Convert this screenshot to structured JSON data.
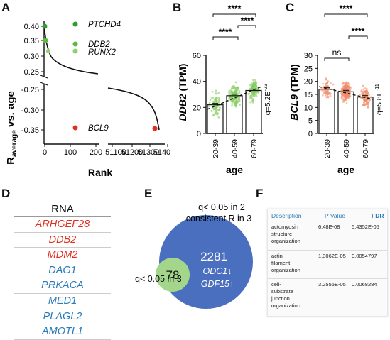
{
  "panels": {
    "a": "A",
    "b": "B",
    "c": "C",
    "d": "D",
    "e": "E",
    "f": "F"
  },
  "colors": {
    "green_dark": "#2e9e2e",
    "green_light": "#8fd16b",
    "red": "#e03020",
    "blue_text": "#2a7bb8",
    "venn_blue": "#4a6fbf",
    "venn_green": "#a3d68a",
    "orange": "#f09070"
  },
  "chart_data": [
    {
      "type": "scatter",
      "panel": "A",
      "ylabel_main": "R",
      "ylabel_sub": "average",
      "ylabel_rest": " vs. age",
      "xlabel": "Rank",
      "upper_yticks": [
        "0.40",
        "0.35",
        "0.30",
        "0.25"
      ],
      "lower_yticks": [
        "-0.25",
        "-0.30",
        "-0.35"
      ],
      "left_xticks": [
        "0",
        "100",
        "200"
      ],
      "right_xticks": [
        "51100",
        "51200",
        "51300",
        "51400"
      ],
      "highlighted": [
        {
          "label": "PTCHD4",
          "rank": 1,
          "r": 0.4,
          "color": "#2e9e2e"
        },
        {
          "label": "DDB2",
          "rank": 2,
          "r": 0.345,
          "color": "#5cbb3c"
        },
        {
          "label": "RUNX2",
          "rank": 8,
          "r": 0.33,
          "color": "#8fd16b"
        },
        {
          "label": "BCL9",
          "rank": 51390,
          "r": -0.345,
          "color": "#e03020"
        }
      ]
    },
    {
      "type": "bar",
      "panel": "B",
      "gene": "DDB2",
      "ylabel_unit": " (TPM)",
      "xlabel": "age",
      "categories": [
        "20-39",
        "40-59",
        "60-79"
      ],
      "values": [
        22,
        29,
        33
      ],
      "ylim": [
        0,
        60
      ],
      "yticks": [
        "0",
        "20",
        "40",
        "60"
      ],
      "stars": "****",
      "q_prefix": "q=5.2E",
      "q_exp": "-23"
    },
    {
      "type": "bar",
      "panel": "C",
      "gene": "BCL9",
      "ylabel_unit": " (TPM)",
      "xlabel": "age",
      "categories": [
        "20-39",
        "40-59",
        "60-79"
      ],
      "values": [
        17,
        16,
        14
      ],
      "ylim": [
        0,
        30
      ],
      "yticks": [
        "0",
        "5",
        "10",
        "15",
        "20",
        "25",
        "30"
      ],
      "ns": "ns",
      "stars": "****",
      "q_prefix": "q=5.8E",
      "q_exp": "-11"
    }
  ],
  "rna_table": {
    "header": "RNA",
    "genes": [
      {
        "name": "ARHGEF28",
        "color": "#e03020"
      },
      {
        "name": "DDB2",
        "color": "#e03020"
      },
      {
        "name": "MDM2",
        "color": "#e03020"
      },
      {
        "name": "DAG1",
        "color": "#2a7bb8"
      },
      {
        "name": "PRKACA",
        "color": "#2a7bb8"
      },
      {
        "name": "MED1",
        "color": "#2a7bb8"
      },
      {
        "name": "PLAGL2",
        "color": "#2a7bb8"
      },
      {
        "name": "AMOTL1",
        "color": "#2a7bb8"
      }
    ]
  },
  "venn": {
    "label_top_1": "q< 0.05 in 2",
    "label_top_2": "consistent R in 3",
    "big_count": "2281",
    "small_count": "78",
    "label_left": "q< 0.05 in 3",
    "gene1": "ODC1↓",
    "gene2": "GDF15↑"
  },
  "go_table": {
    "headers": {
      "desc": "Description",
      "p": "P Value",
      "fdr": "FDR"
    },
    "rows": [
      {
        "desc": [
          "actomyosin",
          "structure",
          "organization"
        ],
        "p": "6.48E-08",
        "fdr": "5.4352E-05"
      },
      {
        "desc": [
          "actin",
          "filament",
          "organization"
        ],
        "p": "1.3062E-05",
        "fdr": "0.0054797"
      },
      {
        "desc": [
          "cell-",
          "substrate",
          "junction",
          "organization"
        ],
        "p": "3.2555E-05",
        "fdr": "0.0068284"
      }
    ]
  }
}
